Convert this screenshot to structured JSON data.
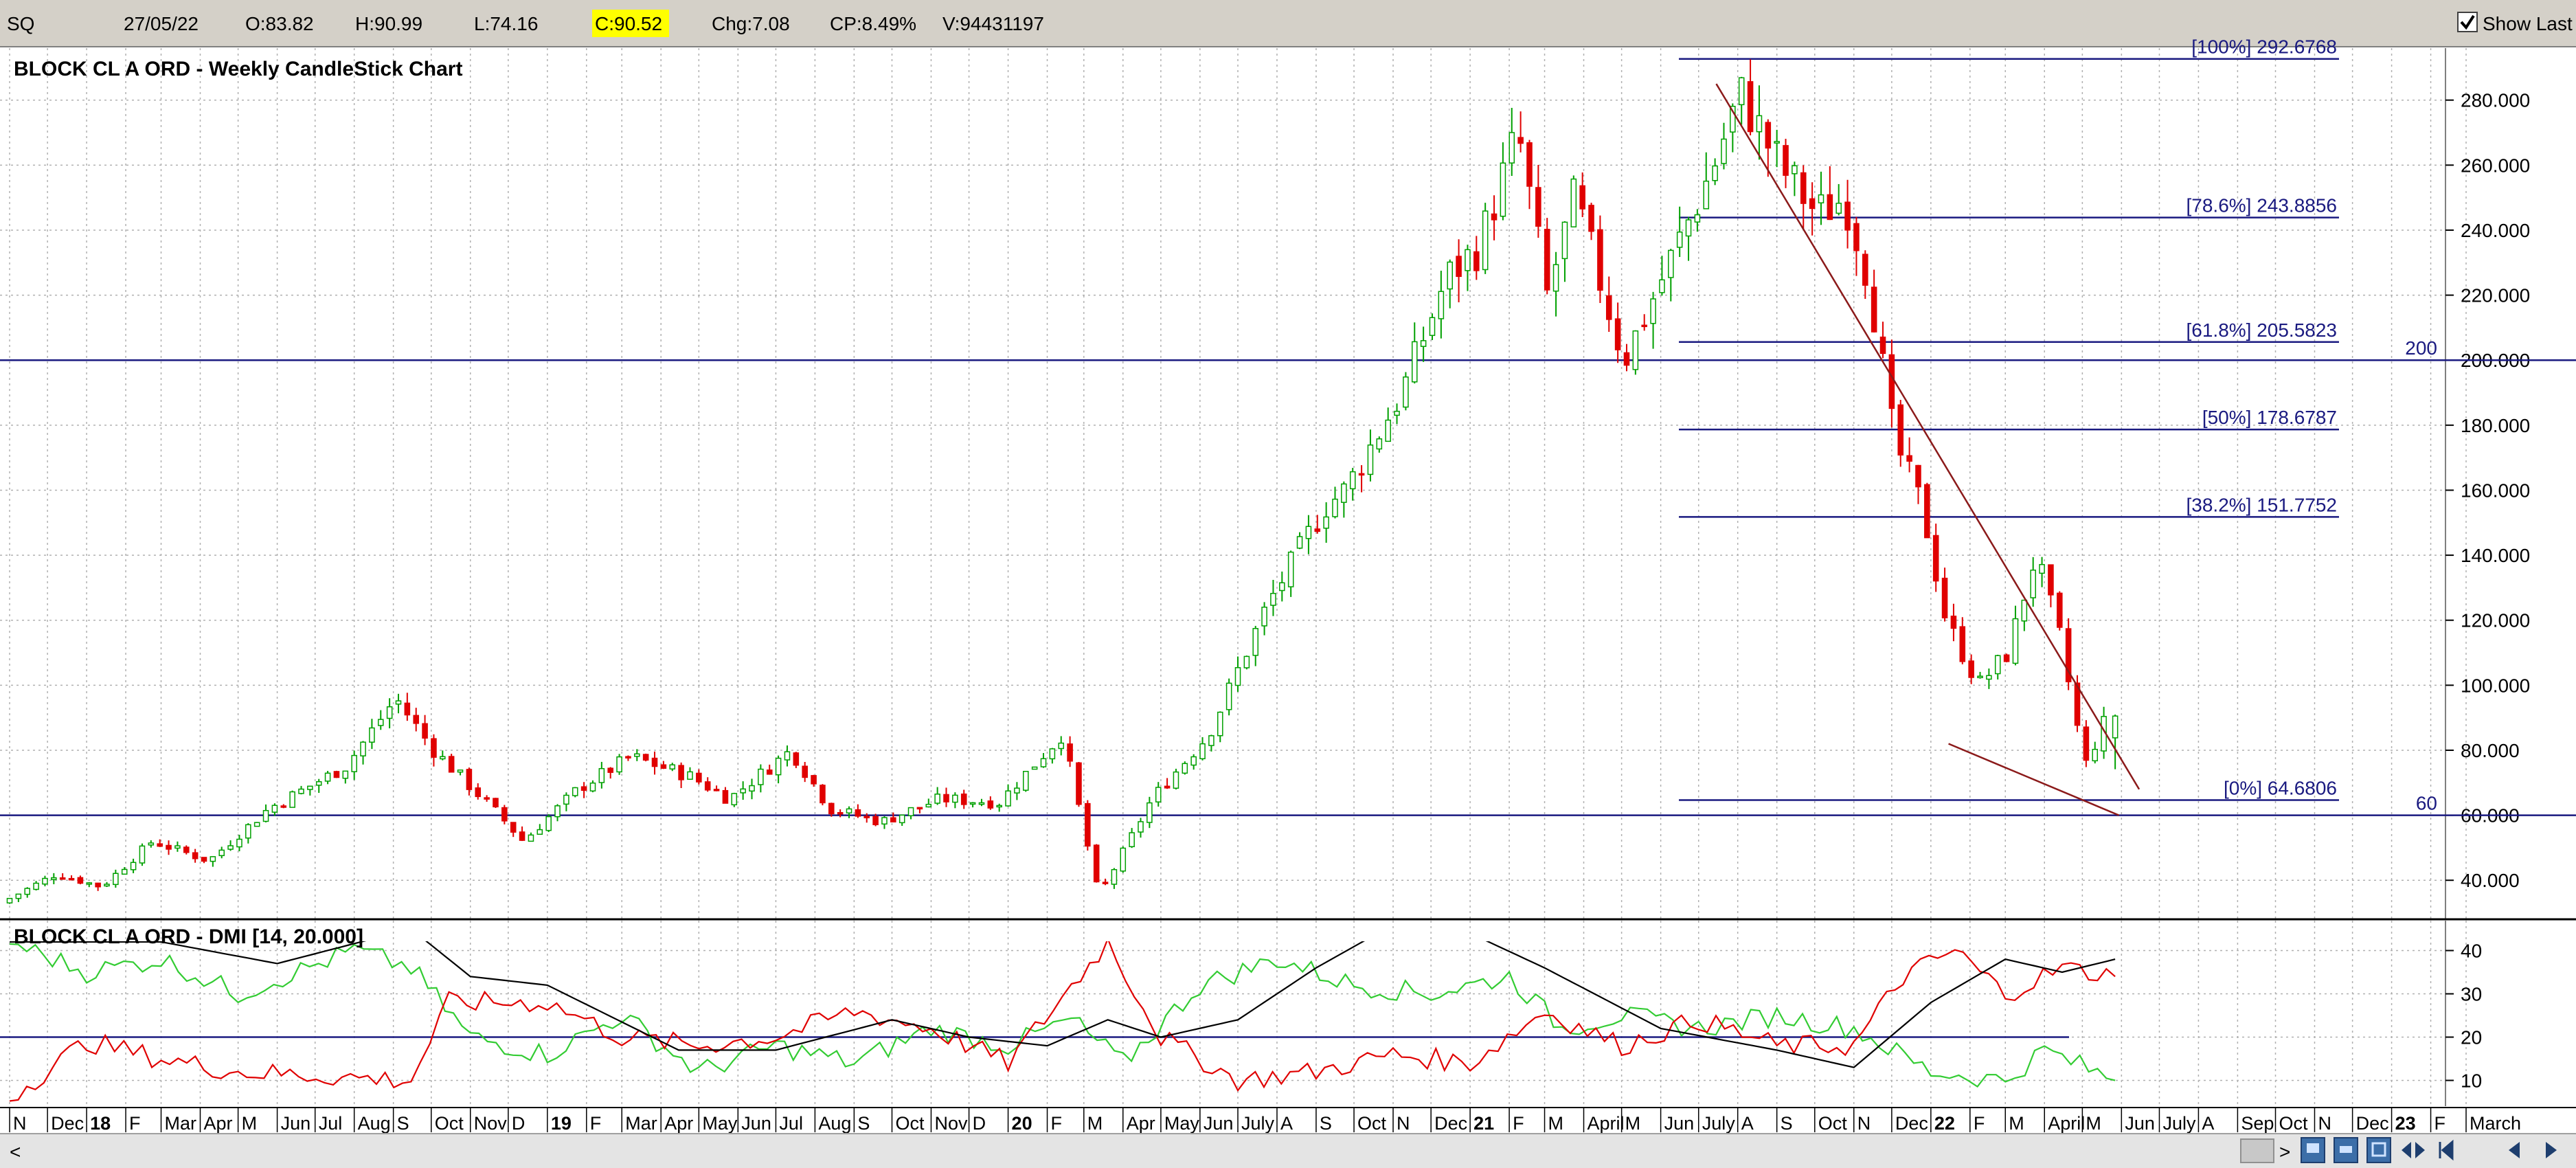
{
  "infobar": {
    "symbol": "SQ",
    "date": "27/05/22",
    "open": "O:83.82",
    "high": "H:90.99",
    "low": "L:74.16",
    "close": "C:90.52",
    "change": "Chg:7.08",
    "change_pct": "CP:8.49%",
    "volume": "V:94431197",
    "show_last_label": "Show Last",
    "show_last_checked": true,
    "close_highlight_color": "#ffff00"
  },
  "colors": {
    "up_candle": "#00a000",
    "down_candle": "#e00000",
    "horizontal_line": "#1a1a80",
    "trendline": "#8b1a1a",
    "grid": "#b0b0b0",
    "dmi_plus": "#33cc33",
    "dmi_minus": "#e00000",
    "adx": "#000000"
  },
  "chart_data": [
    {
      "type": "candlestick",
      "title": "BLOCK CL A ORD - Weekly CandleStick Chart",
      "ylim": [
        28,
        296
      ],
      "y_ticks": [
        "280.000",
        "260.000",
        "240.000",
        "220.000",
        "200.000",
        "180.000",
        "160.000",
        "140.000",
        "120.000",
        "100.000",
        "80.000",
        "60.000",
        "40.000"
      ],
      "grid": true,
      "horizontal_lines": [
        {
          "value": 200,
          "label": "200"
        },
        {
          "value": 60,
          "label": "60"
        }
      ],
      "fibonacci": [
        {
          "value": 292.6768,
          "label": "[100%] 292.6768"
        },
        {
          "value": 243.8856,
          "label": "[78.6%] 243.8856"
        },
        {
          "value": 205.5823,
          "label": "[61.8%] 205.5823"
        },
        {
          "value": 178.6787,
          "label": "[50%] 178.6787"
        },
        {
          "value": 151.7752,
          "label": "[38.2%] 151.7752"
        },
        {
          "value": 64.6806,
          "label": "[0%] 64.6806"
        }
      ],
      "trendlines": [
        {
          "from": [
            "2021-07-15",
            285
          ],
          "to": [
            "2022-06-15",
            68
          ]
        },
        {
          "from": [
            "2022-01-15",
            82
          ],
          "to": [
            "2022-05-30",
            60
          ]
        }
      ],
      "price_path": [
        [
          "2017-11-01",
          33
        ],
        [
          "2017-12-15",
          42
        ],
        [
          "2018-01-20",
          38
        ],
        [
          "2018-03-01",
          52
        ],
        [
          "2018-04-15",
          46
        ],
        [
          "2018-06-01",
          62
        ],
        [
          "2018-08-01",
          75
        ],
        [
          "2018-09-10",
          96
        ],
        [
          "2018-10-10",
          80
        ],
        [
          "2018-12-01",
          60
        ],
        [
          "2018-12-20",
          52
        ],
        [
          "2019-02-01",
          68
        ],
        [
          "2019-03-15",
          78
        ],
        [
          "2019-05-01",
          72
        ],
        [
          "2019-06-01",
          65
        ],
        [
          "2019-07-20",
          80
        ],
        [
          "2019-08-20",
          62
        ],
        [
          "2019-09-30",
          58
        ],
        [
          "2019-11-15",
          65
        ],
        [
          "2020-01-01",
          64
        ],
        [
          "2020-02-20",
          85
        ],
        [
          "2020-03-20",
          35
        ],
        [
          "2020-05-01",
          65
        ],
        [
          "2020-06-15",
          85
        ],
        [
          "2020-08-01",
          125
        ],
        [
          "2020-09-15",
          155
        ],
        [
          "2020-10-01",
          160
        ],
        [
          "2020-11-15",
          190
        ],
        [
          "2020-12-20",
          225
        ],
        [
          "2021-01-15",
          235
        ],
        [
          "2021-02-15",
          270
        ],
        [
          "2021-03-10",
          220
        ],
        [
          "2021-04-01",
          250
        ],
        [
          "2021-05-10",
          200
        ],
        [
          "2021-06-15",
          230
        ],
        [
          "2021-07-20",
          260
        ],
        [
          "2021-08-10",
          282
        ],
        [
          "2021-09-10",
          260
        ],
        [
          "2021-10-10",
          245
        ],
        [
          "2021-11-01",
          250
        ],
        [
          "2021-11-20",
          225
        ],
        [
          "2021-12-10",
          175
        ],
        [
          "2022-01-01",
          155
        ],
        [
          "2022-01-20",
          120
        ],
        [
          "2022-02-15",
          100
        ],
        [
          "2022-03-10",
          110
        ],
        [
          "2022-04-01",
          140
        ],
        [
          "2022-04-20",
          115
        ],
        [
          "2022-05-10",
          75
        ],
        [
          "2022-05-27",
          90
        ]
      ],
      "last_candle": {
        "date": "27/05/22",
        "open": 83.82,
        "high": 90.99,
        "low": 74.16,
        "close": 90.52
      }
    },
    {
      "type": "line",
      "title": "BLOCK CL A ORD - DMI [14, 20.000]",
      "ylim": [
        5,
        45
      ],
      "y_ticks": [
        "40",
        "30",
        "20",
        "10"
      ],
      "threshold": 20,
      "series": [
        {
          "color": "#33cc33",
          "points": [
            [
              "2017-11-01",
              42
            ],
            [
              "2018-01-01",
              35
            ],
            [
              "2018-03-01",
              38
            ],
            [
              "2018-05-01",
              30
            ],
            [
              "2018-08-01",
              40
            ],
            [
              "2018-09-15",
              36
            ],
            [
              "2018-11-01",
              20
            ],
            [
              "2019-01-01",
              16
            ],
            [
              "2019-03-01",
              25
            ],
            [
              "2019-05-01",
              12
            ],
            [
              "2019-07-01",
              18
            ],
            [
              "2019-09-01",
              14
            ],
            [
              "2019-11-01",
              22
            ],
            [
              "2020-01-01",
              18
            ],
            [
              "2020-02-20",
              24
            ],
            [
              "2020-04-01",
              14
            ],
            [
              "2020-06-01",
              32
            ],
            [
              "2020-08-01",
              38
            ],
            [
              "2020-10-01",
              32
            ],
            [
              "2020-12-01",
              30
            ],
            [
              "2021-02-01",
              34
            ],
            [
              "2021-03-15",
              22
            ],
            [
              "2021-05-01",
              25
            ],
            [
              "2021-07-01",
              22
            ],
            [
              "2021-09-01",
              25
            ],
            [
              "2021-11-01",
              22
            ],
            [
              "2022-01-01",
              12
            ],
            [
              "2022-03-01",
              10
            ],
            [
              "2022-04-01",
              17
            ],
            [
              "2022-05-27",
              10
            ]
          ]
        },
        {
          "color": "#e00000",
          "points": [
            [
              "2017-11-01",
              6
            ],
            [
              "2018-01-01",
              19
            ],
            [
              "2018-03-01",
              15
            ],
            [
              "2018-05-01",
              12
            ],
            [
              "2018-09-15",
              10
            ],
            [
              "2018-10-15",
              28
            ],
            [
              "2019-01-01",
              28
            ],
            [
              "2019-03-01",
              20
            ],
            [
              "2019-05-01",
              18
            ],
            [
              "2019-07-01",
              20
            ],
            [
              "2019-09-01",
              26
            ],
            [
              "2019-11-01",
              22
            ],
            [
              "2020-01-01",
              14
            ],
            [
              "2020-03-20",
              42
            ],
            [
              "2020-05-01",
              20
            ],
            [
              "2020-07-01",
              10
            ],
            [
              "2020-09-01",
              12
            ],
            [
              "2020-11-01",
              16
            ],
            [
              "2021-01-01",
              14
            ],
            [
              "2021-03-01",
              26
            ],
            [
              "2021-05-01",
              18
            ],
            [
              "2021-07-01",
              24
            ],
            [
              "2021-09-01",
              18
            ],
            [
              "2021-11-01",
              18
            ],
            [
              "2021-12-10",
              34
            ],
            [
              "2022-01-20",
              40
            ],
            [
              "2022-03-01",
              30
            ],
            [
              "2022-04-15",
              36
            ],
            [
              "2022-05-27",
              34
            ]
          ]
        },
        {
          "color": "#000000",
          "points": [
            [
              "2017-11-01",
              42
            ],
            [
              "2018-03-01",
              42
            ],
            [
              "2018-06-01",
              37
            ],
            [
              "2018-09-15",
              45
            ],
            [
              "2018-11-01",
              34
            ],
            [
              "2019-01-01",
              32
            ],
            [
              "2019-04-15",
              17
            ],
            [
              "2019-07-01",
              17
            ],
            [
              "2019-10-01",
              24
            ],
            [
              "2019-12-01",
              20
            ],
            [
              "2020-02-01",
              18
            ],
            [
              "2020-03-20",
              24
            ],
            [
              "2020-05-01",
              20
            ],
            [
              "2020-07-01",
              24
            ],
            [
              "2020-09-01",
              36
            ],
            [
              "2020-11-01",
              46
            ],
            [
              "2021-01-01",
              44
            ],
            [
              "2021-03-01",
              36
            ],
            [
              "2021-06-01",
              22
            ],
            [
              "2021-09-01",
              17
            ],
            [
              "2021-11-01",
              13
            ],
            [
              "2022-01-01",
              28
            ],
            [
              "2022-03-01",
              38
            ],
            [
              "2022-04-15",
              35
            ],
            [
              "2022-05-27",
              38
            ]
          ]
        }
      ]
    }
  ],
  "date_axis": [
    {
      "label": "N",
      "date": "2017-11-01"
    },
    {
      "label": "Dec",
      "date": "2017-12-01"
    },
    {
      "label": "18",
      "date": "2018-01-01",
      "year": true
    },
    {
      "label": "F",
      "date": "2018-02-01"
    },
    {
      "label": "Mar",
      "date": "2018-03-01"
    },
    {
      "label": "Apr",
      "date": "2018-04-01"
    },
    {
      "label": "M",
      "date": "2018-05-01"
    },
    {
      "label": "Jun",
      "date": "2018-06-01"
    },
    {
      "label": "Jul",
      "date": "2018-07-01"
    },
    {
      "label": "Aug",
      "date": "2018-08-01"
    },
    {
      "label": "S",
      "date": "2018-09-01"
    },
    {
      "label": "Oct",
      "date": "2018-10-01"
    },
    {
      "label": "Nov",
      "date": "2018-11-01"
    },
    {
      "label": "D",
      "date": "2018-12-01"
    },
    {
      "label": "19",
      "date": "2019-01-01",
      "year": true
    },
    {
      "label": "F",
      "date": "2019-02-01"
    },
    {
      "label": "Mar",
      "date": "2019-03-01"
    },
    {
      "label": "Apr",
      "date": "2019-04-01"
    },
    {
      "label": "May",
      "date": "2019-05-01"
    },
    {
      "label": "Jun",
      "date": "2019-06-01"
    },
    {
      "label": "Jul",
      "date": "2019-07-01"
    },
    {
      "label": "Aug",
      "date": "2019-08-01"
    },
    {
      "label": "S",
      "date": "2019-09-01"
    },
    {
      "label": "Oct",
      "date": "2019-10-01"
    },
    {
      "label": "Nov",
      "date": "2019-11-01"
    },
    {
      "label": "D",
      "date": "2019-12-01"
    },
    {
      "label": "20",
      "date": "2020-01-01",
      "year": true
    },
    {
      "label": "F",
      "date": "2020-02-01"
    },
    {
      "label": "M",
      "date": "2020-03-01"
    },
    {
      "label": "Apr",
      "date": "2020-04-01"
    },
    {
      "label": "May",
      "date": "2020-05-01"
    },
    {
      "label": "Jun",
      "date": "2020-06-01"
    },
    {
      "label": "July",
      "date": "2020-07-01"
    },
    {
      "label": "A",
      "date": "2020-08-01"
    },
    {
      "label": "S",
      "date": "2020-09-01"
    },
    {
      "label": "Oct",
      "date": "2020-10-01"
    },
    {
      "label": "N",
      "date": "2020-11-01"
    },
    {
      "label": "Dec",
      "date": "2020-12-01"
    },
    {
      "label": "21",
      "date": "2021-01-01",
      "year": true
    },
    {
      "label": "F",
      "date": "2021-02-01"
    },
    {
      "label": "M",
      "date": "2021-03-01"
    },
    {
      "label": "April",
      "date": "2021-04-01"
    },
    {
      "label": "M",
      "date": "2021-05-01"
    },
    {
      "label": "Jun",
      "date": "2021-06-01"
    },
    {
      "label": "July",
      "date": "2021-07-01"
    },
    {
      "label": "A",
      "date": "2021-08-01"
    },
    {
      "label": "S",
      "date": "2021-09-01"
    },
    {
      "label": "Oct",
      "date": "2021-10-01"
    },
    {
      "label": "N",
      "date": "2021-11-01"
    },
    {
      "label": "Dec",
      "date": "2021-12-01"
    },
    {
      "label": "22",
      "date": "2022-01-01",
      "year": true
    },
    {
      "label": "F",
      "date": "2022-02-01"
    },
    {
      "label": "M",
      "date": "2022-03-01"
    },
    {
      "label": "April",
      "date": "2022-04-01"
    },
    {
      "label": "M",
      "date": "2022-05-01"
    },
    {
      "label": "Jun",
      "date": "2022-06-01"
    },
    {
      "label": "July",
      "date": "2022-07-01"
    },
    {
      "label": "A",
      "date": "2022-08-01"
    },
    {
      "label": "Sep",
      "date": "2022-09-01"
    },
    {
      "label": "Oct",
      "date": "2022-10-01"
    },
    {
      "label": "N",
      "date": "2022-11-01"
    },
    {
      "label": "Dec",
      "date": "2022-12-01"
    },
    {
      "label": "23",
      "date": "2023-01-01",
      "year": true
    },
    {
      "label": "F",
      "date": "2023-02-01"
    },
    {
      "label": "March",
      "date": "2023-03-01"
    }
  ],
  "scrollbar": {
    "left_arrow": "<",
    "right_arrow": ">"
  }
}
